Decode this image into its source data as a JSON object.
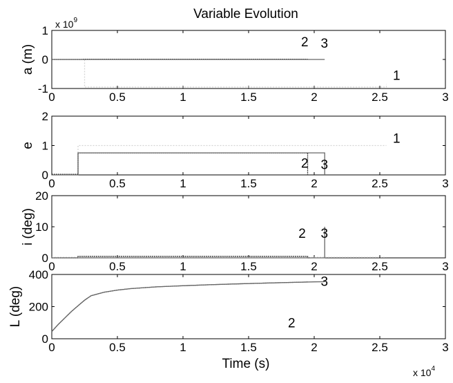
{
  "figure": {
    "title": "Variable Evolution",
    "xlabel": "Time (s)",
    "x_exponent_label": "x 10",
    "x_exponent_power": "4"
  },
  "chart_data": [
    {
      "type": "line",
      "id": "a",
      "ylabel": "a (m)",
      "y_exponent_label": "x 10",
      "y_exponent_power": "9",
      "xlim": [
        0,
        3
      ],
      "ylim": [
        -1,
        1
      ],
      "x_ticks": [
        "0",
        "0.5",
        "1",
        "1.5",
        "2",
        "2.5",
        "3"
      ],
      "y_ticks": [
        {
          "value": 1,
          "label": "1"
        },
        {
          "value": 0,
          "label": "0"
        },
        {
          "value": -1,
          "label": "-1"
        }
      ],
      "series": [
        {
          "name": "1",
          "color": "#d4d4d4",
          "dash": "2,2",
          "x": [
            0,
            0.25,
            0.25,
            2.55,
            2.55
          ],
          "y": [
            0,
            0,
            -0.95,
            -0.95,
            -0.85
          ]
        },
        {
          "name": "2",
          "color": "#333333",
          "dash": "2,1",
          "x": [
            0,
            0.22,
            0.25,
            1.95
          ],
          "y": [
            0,
            0,
            0.01,
            0.01
          ]
        },
        {
          "name": "3",
          "color": "#666666",
          "dash": "",
          "x": [
            0,
            2.08
          ],
          "y": [
            0,
            0
          ]
        }
      ],
      "labels": [
        {
          "text": "2",
          "x": 1.9,
          "y": 0.45
        },
        {
          "text": "3",
          "x": 2.05,
          "y": 0.4
        },
        {
          "text": "1",
          "x": 2.6,
          "y": -0.7
        }
      ]
    },
    {
      "type": "line",
      "id": "e",
      "ylabel": "e",
      "xlim": [
        0,
        3
      ],
      "ylim": [
        0,
        2
      ],
      "x_ticks": [
        "0",
        "0.5",
        "1",
        "1.5",
        "2",
        "2.5",
        "3"
      ],
      "y_ticks": [
        {
          "value": 2,
          "label": "2"
        },
        {
          "value": 1,
          "label": "1"
        },
        {
          "value": 0,
          "label": "0"
        }
      ],
      "series": [
        {
          "name": "1",
          "color": "#d4d4d4",
          "dash": "2,2",
          "x": [
            0.2,
            0.2,
            2.55
          ],
          "y": [
            0,
            1.0,
            1.0
          ]
        },
        {
          "name": "2",
          "color": "#333333",
          "dash": "2,1",
          "x": [
            0,
            0.2,
            0.2,
            1.95,
            1.95
          ],
          "y": [
            0.02,
            0.02,
            0.75,
            0.75,
            0.02
          ]
        },
        {
          "name": "3",
          "color": "#666666",
          "dash": "",
          "x": [
            0,
            0.2,
            0.2,
            2.08,
            2.08
          ],
          "y": [
            0,
            0,
            0.75,
            0.75,
            0
          ]
        }
      ],
      "labels": [
        {
          "text": "1",
          "x": 2.6,
          "y": 1.1
        },
        {
          "text": "2",
          "x": 1.9,
          "y": 0.25
        },
        {
          "text": "3",
          "x": 2.05,
          "y": 0.2
        }
      ]
    },
    {
      "type": "line",
      "id": "i",
      "ylabel": "i (deg)",
      "xlim": [
        0,
        3
      ],
      "ylim": [
        0,
        20
      ],
      "x_ticks": [
        "0",
        "0.5",
        "1",
        "1.5",
        "2",
        "2.5",
        "3"
      ],
      "y_ticks": [
        {
          "value": 20,
          "label": "20"
        },
        {
          "value": 10,
          "label": "10"
        },
        {
          "value": 0,
          "label": "0"
        }
      ],
      "series": [
        {
          "name": "1",
          "color": "#d4d4d4",
          "dash": "2,2",
          "x": [
            0,
            2.55
          ],
          "y": [
            0.2,
            0.2
          ]
        },
        {
          "name": "2",
          "color": "#333333",
          "dash": "2,1",
          "x": [
            0,
            0.2,
            0.2,
            1.95,
            1.95,
            1.97
          ],
          "y": [
            0,
            0,
            0.5,
            0.5,
            0,
            0
          ]
        },
        {
          "name": "3",
          "color": "#666666",
          "dash": "",
          "x": [
            0,
            2.08,
            2.08
          ],
          "y": [
            0,
            0,
            10
          ]
        }
      ],
      "labels": [
        {
          "text": "2",
          "x": 1.88,
          "y": 6.5
        },
        {
          "text": "3",
          "x": 2.05,
          "y": 6.5
        }
      ]
    },
    {
      "type": "line",
      "id": "L",
      "ylabel": "L (deg)",
      "xlim": [
        0,
        3
      ],
      "ylim": [
        0,
        400
      ],
      "x_ticks": [
        "0",
        "0.5",
        "1",
        "1.5",
        "2",
        "2.5",
        "3"
      ],
      "y_ticks": [
        {
          "value": 400,
          "label": "400"
        },
        {
          "value": 200,
          "label": "200"
        },
        {
          "value": 0,
          "label": "0"
        }
      ],
      "series": [
        {
          "name": "2",
          "color": "#333333",
          "dash": "2,1",
          "x": [
            0,
            0.05,
            0.1,
            0.15,
            0.2,
            0.25,
            0.3,
            0.4,
            0.5,
            0.6,
            0.8,
            1.0,
            1.2,
            1.4,
            1.6,
            1.8,
            1.95
          ],
          "y": [
            45,
            90,
            130,
            170,
            205,
            240,
            268,
            290,
            303,
            312,
            323,
            330,
            336,
            341,
            346,
            350,
            353
          ]
        },
        {
          "name": "3",
          "color": "#666666",
          "dash": "",
          "x": [
            0,
            0.05,
            0.1,
            0.15,
            0.2,
            0.25,
            0.3,
            0.4,
            0.5,
            0.6,
            0.8,
            1.0,
            1.2,
            1.4,
            1.6,
            1.8,
            2.0,
            2.08
          ],
          "y": [
            45,
            90,
            130,
            170,
            205,
            240,
            268,
            290,
            303,
            312,
            323,
            330,
            336,
            341,
            346,
            350,
            354,
            355
          ]
        }
      ],
      "labels": [
        {
          "text": "3",
          "x": 2.05,
          "y": 330
        },
        {
          "text": "2",
          "x": 1.8,
          "y": 70
        }
      ]
    }
  ]
}
